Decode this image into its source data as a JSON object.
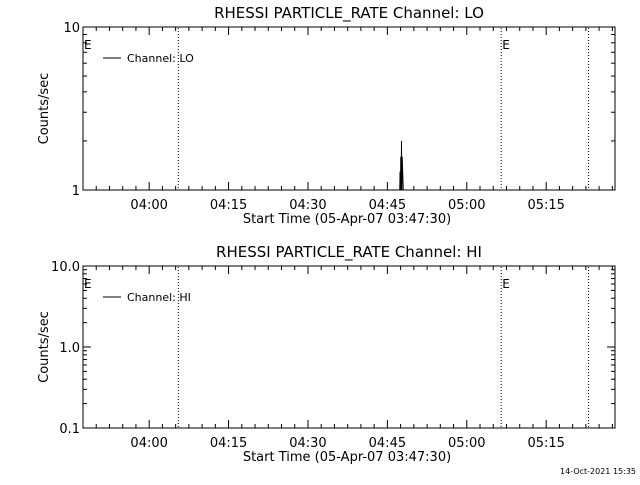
{
  "chart_data": [
    {
      "type": "line",
      "title": "RHESSI PARTICLE_RATE Channel: LO",
      "xlabel": "Start Time (05-Apr-07 03:47:30)",
      "ylabel": "Counts/sec",
      "y_scale": "log",
      "ylim": [
        1,
        10
      ],
      "y_ticks": [
        1,
        10
      ],
      "y_tick_labels": [
        "1",
        "10"
      ],
      "xlim": [
        "03:47:30",
        "05:28:00"
      ],
      "x_ticks": [
        "04:00",
        "04:15",
        "04:30",
        "04:45",
        "05:00",
        "05:15"
      ],
      "grid": false,
      "legend_position": "top-left",
      "series": [
        {
          "name": "Channel: LO",
          "x": [
            "04:47:00",
            "04:47:20",
            "04:47:24",
            "04:47:28",
            "04:47:32",
            "04:47:36",
            "04:47:40",
            "04:47:44",
            "04:47:48",
            "04:48:00"
          ],
          "y": [
            1,
            1,
            1.3,
            1,
            1.6,
            1,
            2.0,
            1,
            1.6,
            1
          ]
        }
      ],
      "event_lines": [
        "04:05:30",
        "05:06:30",
        "05:23:00"
      ],
      "event_markers": [
        {
          "label": "E",
          "x": "03:47:30"
        },
        {
          "label": "E",
          "x": "05:06:30"
        }
      ]
    },
    {
      "type": "line",
      "title": "RHESSI PARTICLE_RATE Channel: HI",
      "xlabel": "Start Time (05-Apr-07 03:47:30)",
      "ylabel": "Counts/sec",
      "y_scale": "log",
      "ylim": [
        0.1,
        10
      ],
      "y_ticks": [
        0.1,
        1,
        10
      ],
      "y_tick_labels": [
        "0.1",
        "1.0",
        "10.0"
      ],
      "xlim": [
        "03:47:30",
        "05:28:00"
      ],
      "x_ticks": [
        "04:00",
        "04:15",
        "04:30",
        "04:45",
        "05:00",
        "05:15"
      ],
      "grid": false,
      "legend_position": "top-left",
      "series": [
        {
          "name": "Channel: HI",
          "x": [],
          "y": []
        }
      ],
      "event_lines": [
        "04:05:30",
        "05:06:30",
        "05:23:00"
      ],
      "event_markers": [
        {
          "label": "E",
          "x": "03:47:30"
        },
        {
          "label": "E",
          "x": "05:06:30"
        }
      ]
    }
  ],
  "footer": {
    "timestamp": "14-Oct-2021 15:35"
  }
}
